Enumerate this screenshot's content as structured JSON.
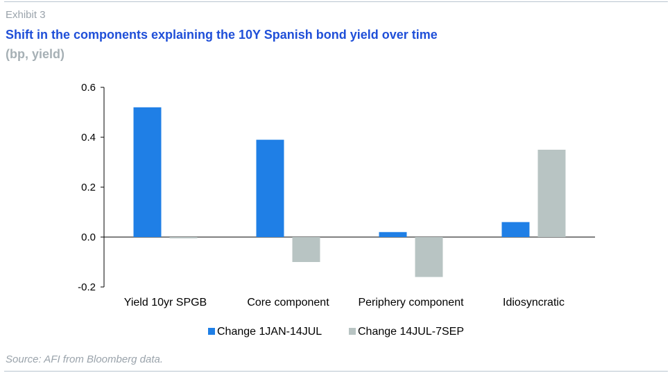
{
  "header": {
    "exhibit": "Exhibit 3",
    "title": "Shift in the components explaining the 10Y Spanish bond yield over time",
    "subtitle": "(bp, yield)"
  },
  "footer": {
    "source": "Source: AFI from Bloomberg data."
  },
  "colors": {
    "series1": "#1f7fe6",
    "series2": "#b8c4c3",
    "title": "#1f4fd8",
    "muted": "#9aa3ab"
  },
  "chart_data": {
    "type": "bar",
    "categories": [
      "Yield 10yr SPGB",
      "Core component",
      "Periphery component",
      "Idiosyncratic"
    ],
    "series": [
      {
        "name": "Change 1JAN-14JUL",
        "values": [
          0.52,
          0.39,
          0.02,
          0.06
        ]
      },
      {
        "name": "Change 14JUL-7SEP",
        "values": [
          -0.005,
          -0.1,
          -0.16,
          0.35
        ]
      }
    ],
    "yticks": [
      "0.6",
      "0.4",
      "0.2",
      "0.0",
      "-0.2"
    ],
    "ylim": [
      -0.2,
      0.6
    ],
    "grid": false,
    "legend_position": "bottom"
  }
}
